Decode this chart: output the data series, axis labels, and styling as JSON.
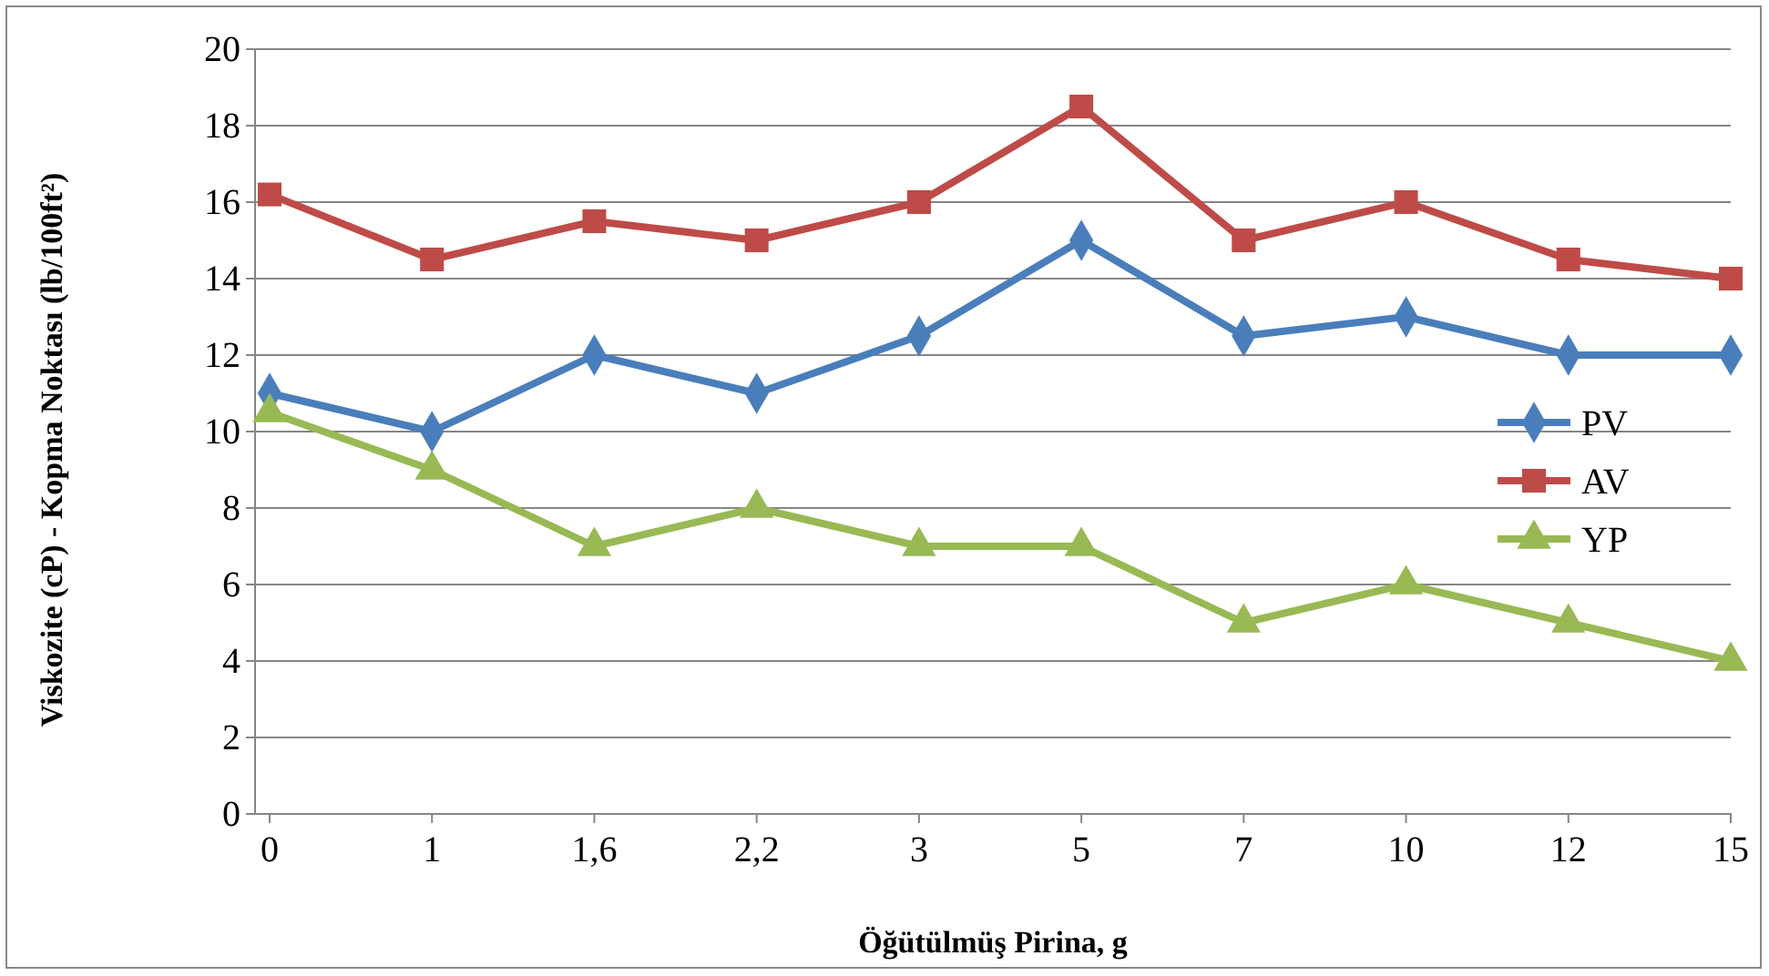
{
  "chart_data": {
    "type": "line",
    "xlabel": "Öğütülmüş Pirina, g",
    "ylabel": "Viskozite (cP) - Kopma Noktası (lb/100ft²)",
    "categories": [
      "0",
      "1",
      "1,6",
      "2,2",
      "3",
      "5",
      "7",
      "10",
      "12",
      "15"
    ],
    "ylim": [
      0,
      20
    ],
    "yticks": [
      0,
      2,
      4,
      6,
      8,
      10,
      12,
      14,
      16,
      18,
      20
    ],
    "grid": "y",
    "legend": "right",
    "series": [
      {
        "name": "PV",
        "color": "#4a7ebb",
        "marker": "diamond",
        "values": [
          11,
          10,
          12,
          11,
          12.5,
          15,
          12.5,
          13,
          12,
          12
        ]
      },
      {
        "name": "AV",
        "color": "#be4b48",
        "marker": "square",
        "values": [
          16.2,
          14.5,
          15.5,
          15,
          16,
          18.5,
          15,
          16,
          14.5,
          14
        ]
      },
      {
        "name": "YP",
        "color": "#98b954",
        "marker": "triangle",
        "values": [
          10.5,
          9,
          7,
          8,
          7,
          7,
          5,
          6,
          5,
          4
        ]
      }
    ]
  }
}
